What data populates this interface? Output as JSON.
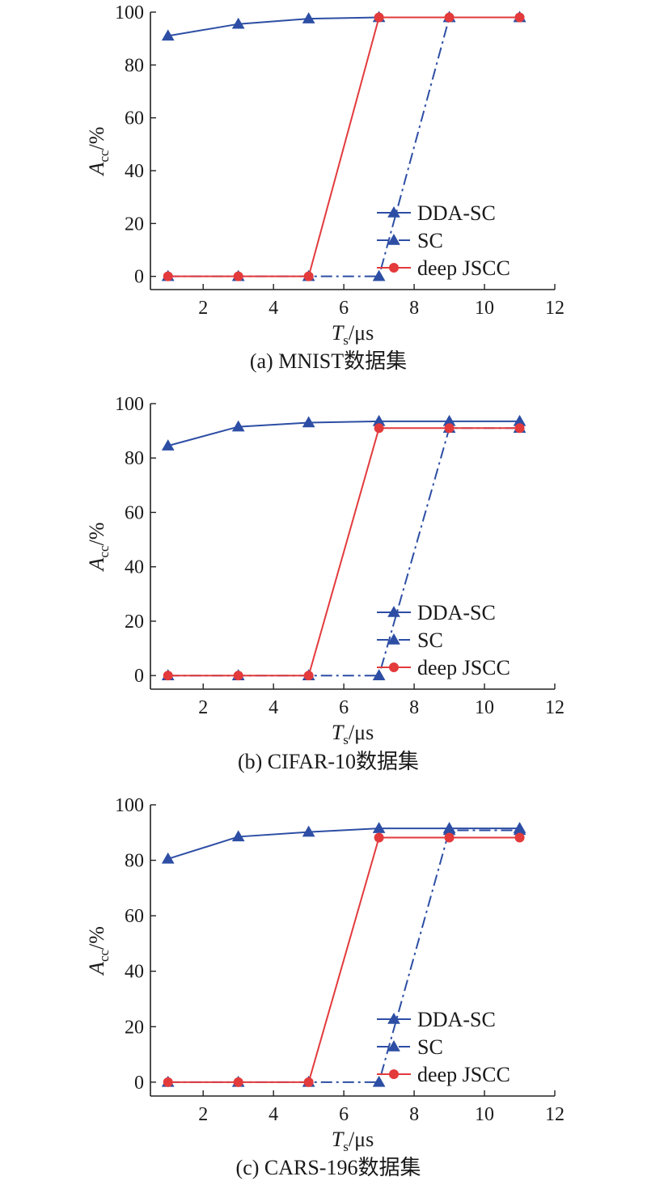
{
  "colors": {
    "dda": "#2d4ea4",
    "sc": "#2d4ea4",
    "jscc": "#e33a3c",
    "axis": "#222222"
  },
  "chart_data": [
    {
      "type": "line",
      "caption": "(a) MNIST数据集",
      "xlabel": {
        "main": "T",
        "sub": "s",
        "unit": "/μs"
      },
      "ylabel": {
        "main": "A",
        "sub": "cc",
        "unit": "/%"
      },
      "xlim": [
        0.5,
        12
      ],
      "ylim": [
        -5,
        100
      ],
      "xticks": [
        2,
        4,
        6,
        8,
        10,
        12
      ],
      "yticks": [
        0,
        20,
        40,
        60,
        80,
        100
      ],
      "legend_position": "bottom-right",
      "x": [
        1,
        3,
        5,
        7,
        9,
        11
      ],
      "series": [
        {
          "name": "DDA-SC",
          "marker": "triangle",
          "style": "solid",
          "values": [
            91,
            95.5,
            97.5,
            98,
            98,
            98
          ]
        },
        {
          "name": "SC",
          "marker": "triangle",
          "style": "dashdot",
          "values": [
            0,
            0,
            0,
            0,
            98,
            98
          ]
        },
        {
          "name": "deep JSCC",
          "marker": "circle",
          "style": "solid",
          "values": [
            0,
            0,
            0,
            98,
            98,
            98
          ]
        }
      ]
    },
    {
      "type": "line",
      "caption": "(b) CIFAR-10数据集",
      "xlabel": {
        "main": "T",
        "sub": "s",
        "unit": "/μs"
      },
      "ylabel": {
        "main": "A",
        "sub": "cc",
        "unit": "/%"
      },
      "xlim": [
        0.5,
        12
      ],
      "ylim": [
        -5,
        100
      ],
      "xticks": [
        2,
        4,
        6,
        8,
        10,
        12
      ],
      "yticks": [
        0,
        20,
        40,
        60,
        80,
        100
      ],
      "legend_position": "bottom-right",
      "x": [
        1,
        3,
        5,
        7,
        9,
        11
      ],
      "series": [
        {
          "name": "DDA-SC",
          "marker": "triangle",
          "style": "solid",
          "values": [
            84.5,
            91.5,
            93,
            93.5,
            93.5,
            93.5
          ]
        },
        {
          "name": "SC",
          "marker": "triangle",
          "style": "dashdot",
          "values": [
            0,
            0,
            0,
            0,
            91,
            91
          ]
        },
        {
          "name": "deep JSCC",
          "marker": "circle",
          "style": "solid",
          "values": [
            0,
            0,
            0,
            91,
            91,
            91
          ]
        }
      ]
    },
    {
      "type": "line",
      "caption": "(c) CARS-196数据集",
      "xlabel": {
        "main": "T",
        "sub": "s",
        "unit": "/μs"
      },
      "ylabel": {
        "main": "A",
        "sub": "cc",
        "unit": "/%"
      },
      "xlim": [
        0.5,
        12
      ],
      "ylim": [
        -5,
        100
      ],
      "xticks": [
        2,
        4,
        6,
        8,
        10,
        12
      ],
      "yticks": [
        0,
        20,
        40,
        60,
        80,
        100
      ],
      "legend_position": "bottom-right",
      "x": [
        1,
        3,
        5,
        7,
        9,
        11
      ],
      "series": [
        {
          "name": "DDA-SC",
          "marker": "triangle",
          "style": "solid",
          "values": [
            80.5,
            88.5,
            90.2,
            91.5,
            91.5,
            91.5
          ]
        },
        {
          "name": "SC",
          "marker": "triangle",
          "style": "dashdot",
          "values": [
            0,
            0,
            0,
            0,
            90.8,
            90.8
          ]
        },
        {
          "name": "deep JSCC",
          "marker": "circle",
          "style": "solid",
          "values": [
            0,
            0,
            0,
            88.2,
            88.2,
            88.2
          ]
        }
      ]
    }
  ]
}
